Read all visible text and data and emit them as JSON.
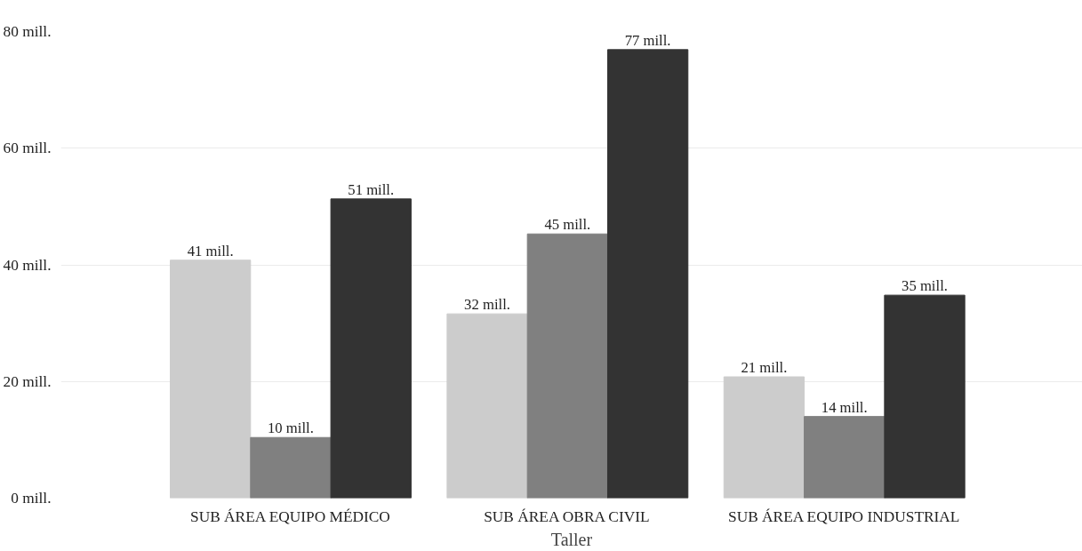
{
  "chart_data": {
    "type": "bar",
    "xlabel": "Taller",
    "categories": [
      "SUB ÁREA EQUIPO MÉDICO",
      "SUB ÁREA OBRA CIVIL",
      "SUB ÁREA EQUIPO INDUSTRIAL"
    ],
    "series": [
      {
        "color": "#cccccc",
        "values": [
          40.8,
          31.6,
          20.8
        ],
        "value_labels": [
          "41 mill.",
          "32 mill.",
          "21 mill."
        ]
      },
      {
        "color": "#808080",
        "values": [
          10.4,
          45.3,
          14.0
        ],
        "value_labels": [
          "10 mill.",
          "45 mill.",
          "14 mill."
        ]
      },
      {
        "color": "#333333",
        "values": [
          51.3,
          76.9,
          34.8
        ],
        "value_labels": [
          "51 mill.",
          "77 mill.",
          "35 mill."
        ]
      }
    ],
    "ylim": [
      0,
      80
    ],
    "yticks": [
      {
        "value": 0,
        "label": "0 mill."
      },
      {
        "value": 20,
        "label": "20 mill."
      },
      {
        "value": 40,
        "label": "40 mill."
      },
      {
        "value": 60,
        "label": "60 mill."
      },
      {
        "value": 80,
        "label": "80 mill."
      }
    ],
    "grid": "y"
  }
}
